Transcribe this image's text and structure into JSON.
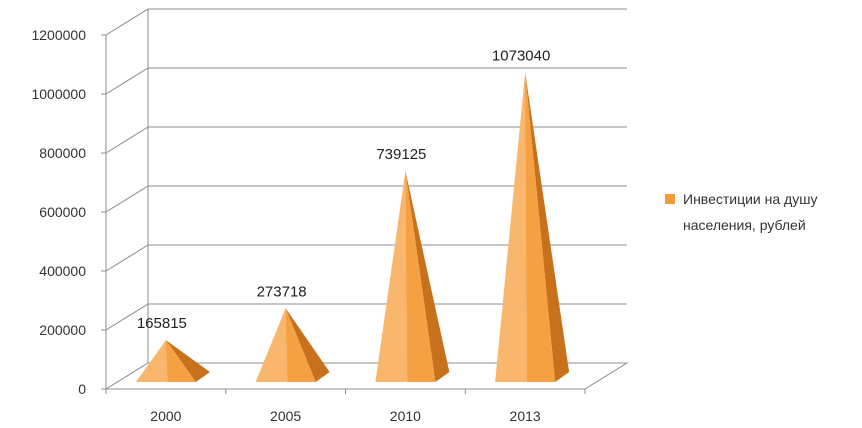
{
  "chart_data": {
    "type": "bar",
    "style": "3d-pyramid",
    "categories": [
      "2000",
      "2005",
      "2010",
      "2013"
    ],
    "series": [
      {
        "name": "Инвестиции на душу населения, рублей",
        "name_lines": [
          "Инвестиции на душу",
          "населения, рублей"
        ],
        "values": [
          165815,
          273718,
          739125,
          1073040
        ]
      }
    ],
    "data_labels": [
      "165815",
      "273718",
      "739125",
      "1073040"
    ],
    "y_ticks": [
      0,
      200000,
      400000,
      600000,
      800000,
      1000000,
      1200000
    ],
    "ylim": [
      0,
      1200000
    ],
    "grid": true,
    "legend_position": "right",
    "colors": {
      "bar_light": "#f9b76d",
      "bar_mid": "#f39c3c",
      "bar_dark": "#c7711d",
      "grid": "#8c8c8c"
    }
  }
}
